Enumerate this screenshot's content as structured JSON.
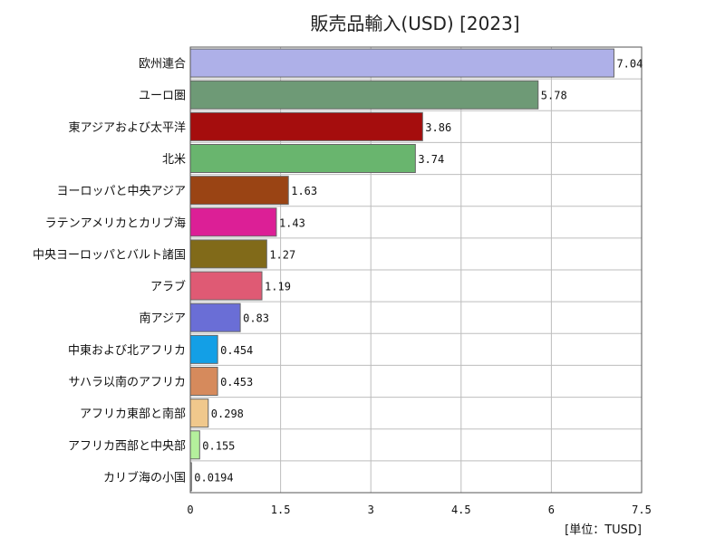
{
  "chart_data": {
    "type": "bar",
    "orientation": "horizontal",
    "title": "販売品輸入(USD) [2023]",
    "unit_label": "[単位：TUSD]",
    "categories": [
      "欧州連合",
      "ユーロ圏",
      "東アジアおよび太平洋",
      "北米",
      "ヨーロッパと中央アジア",
      "ラテンアメリカとカリブ海",
      "中央ヨーロッパとバルト諸国",
      "アラブ",
      "南アジア",
      "中東および北アフリカ",
      "サハラ以南のアフリカ",
      "アフリカ東部と南部",
      "アフリカ西部と中央部",
      "カリブ海の小国"
    ],
    "values": [
      7.04,
      5.78,
      3.86,
      3.74,
      1.63,
      1.43,
      1.27,
      1.19,
      0.83,
      0.454,
      0.453,
      0.298,
      0.155,
      0.0194
    ],
    "value_labels": [
      "7.04",
      "5.78",
      "3.86",
      "3.74",
      "1.63",
      "1.43",
      "1.27",
      "1.19",
      "0.83",
      "0.454",
      "0.453",
      "0.298",
      "0.155",
      "0.0194"
    ],
    "colors": [
      "#aeb0e8",
      "#6e9a76",
      "#a50d0d",
      "#69b56e",
      "#9a4414",
      "#dc1f96",
      "#816a19",
      "#df5a74",
      "#6a6ed6",
      "#139fe6",
      "#d68a5c",
      "#f0c88c",
      "#b4f09c",
      "#c8c8c8"
    ],
    "xlim": [
      0,
      7.5
    ],
    "xticks": [
      "0",
      "1.5",
      "3",
      "4.5",
      "6",
      "7.5"
    ],
    "grid": true,
    "legend": "none"
  }
}
